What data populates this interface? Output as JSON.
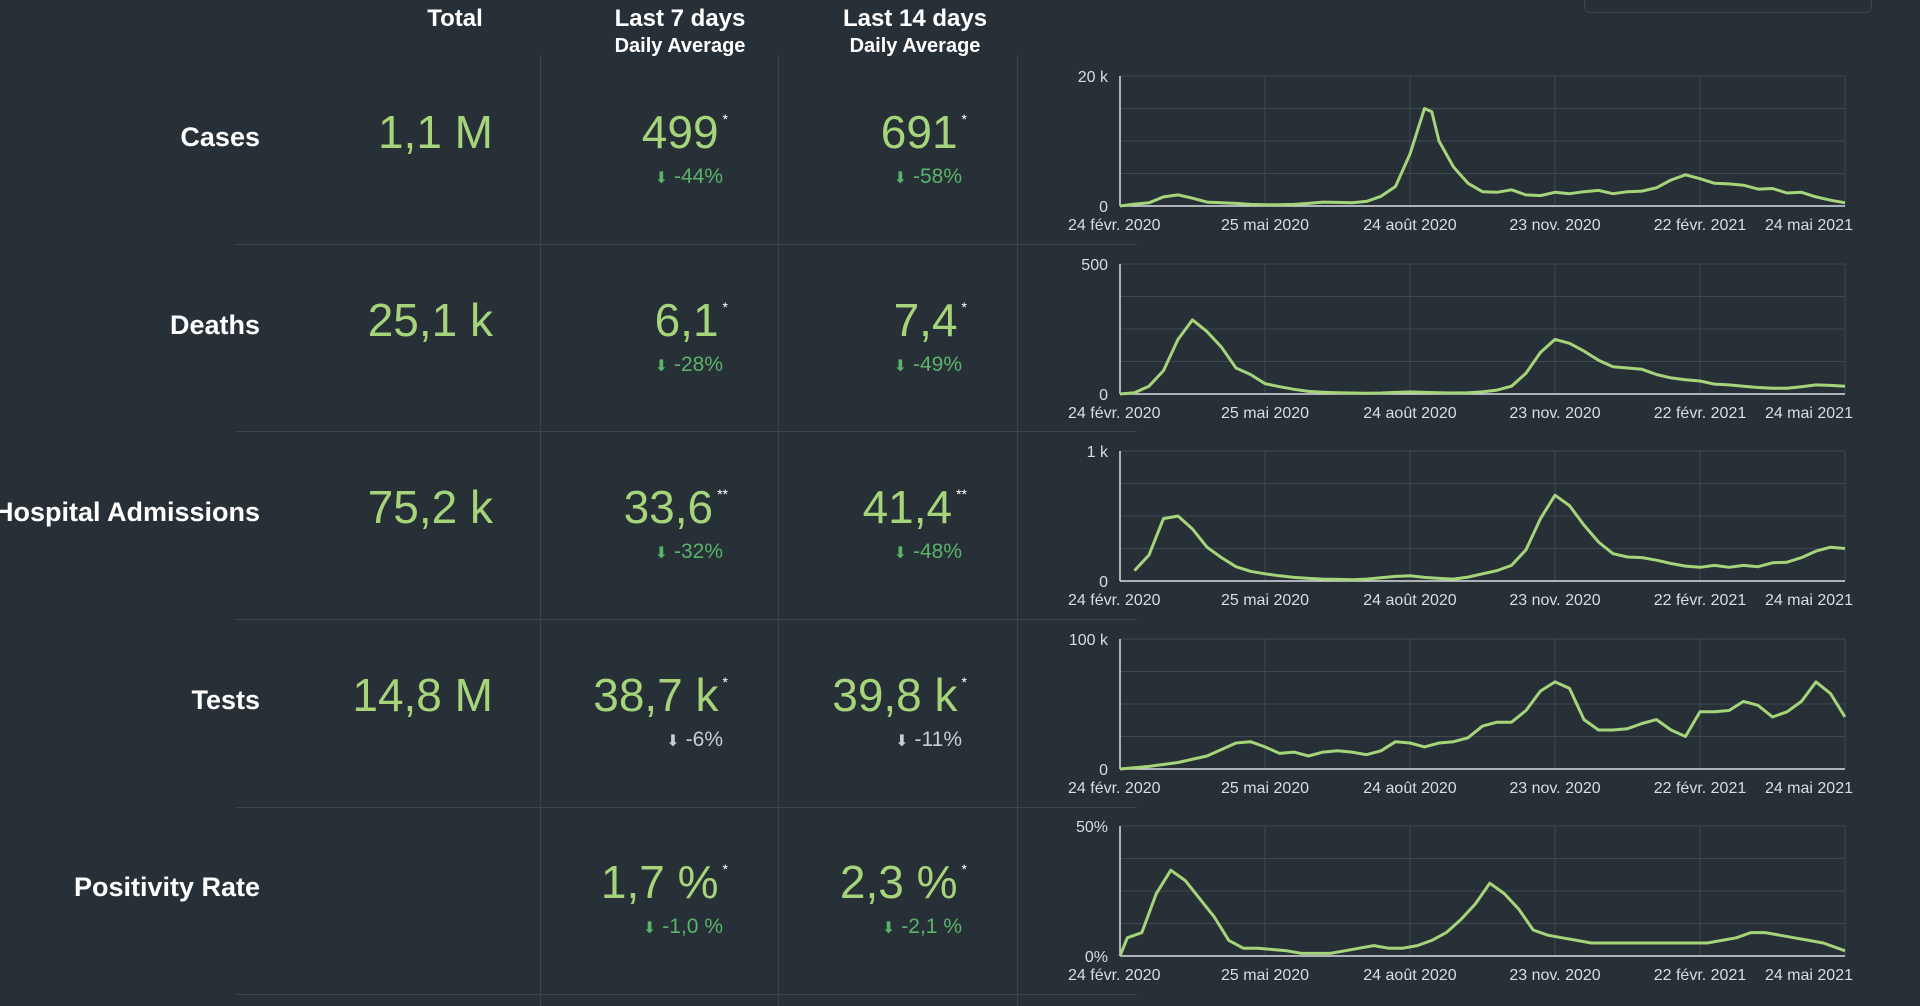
{
  "headers": {
    "total": "Total",
    "last7": "Last 7 days",
    "last7_sub": "Daily Average",
    "last14": "Last 14 days",
    "last14_sub": "Daily Average"
  },
  "colors": {
    "accent": "#a6d47a",
    "down": "#5ab36a",
    "neutral": "#c9ced2",
    "background": "#283037"
  },
  "rows": [
    {
      "label": "Cases",
      "total": "1,1 M",
      "avg7": "499",
      "avg7_mark": "*",
      "chg7": "-44%",
      "chg7_tone": "green",
      "avg14": "691",
      "avg14_mark": "*",
      "chg14": "-58%",
      "chg14_tone": "green"
    },
    {
      "label": "Deaths",
      "total": "25,1 k",
      "avg7": "6,1",
      "avg7_mark": "*",
      "chg7": "-28%",
      "chg7_tone": "green",
      "avg14": "7,4",
      "avg14_mark": "*",
      "chg14": "-49%",
      "chg14_tone": "green"
    },
    {
      "label": "Hospital Admissions",
      "total": "75,2 k",
      "avg7": "33,6",
      "avg7_mark": "**",
      "chg7": "-32%",
      "chg7_tone": "green",
      "avg14": "41,4",
      "avg14_mark": "**",
      "chg14": "-48%",
      "chg14_tone": "green"
    },
    {
      "label": "Tests",
      "total": "14,8 M",
      "avg7": "38,7 k",
      "avg7_mark": "*",
      "chg7": "-6%",
      "chg7_tone": "grey",
      "avg14": "39,8 k",
      "avg14_mark": "*",
      "chg14": "-11%",
      "chg14_tone": "grey"
    },
    {
      "label": "Positivity Rate",
      "total": "",
      "avg7": "1,7 %",
      "avg7_mark": "*",
      "chg7": "-1,0 %",
      "chg7_tone": "green",
      "avg14": "2,3 %",
      "avg14_mark": "*",
      "chg14": "-2,1 %",
      "chg14_tone": "green"
    }
  ],
  "chart_data": [
    {
      "type": "line",
      "metric": "Cases",
      "ylim": [
        0,
        20000
      ],
      "yticks": [
        "0",
        "20 k"
      ],
      "xticks": [
        "24 févr. 2020",
        "25 mai 2020",
        "24 août 2020",
        "23 nov. 2020",
        "22 févr. 2021",
        "24 mai 2021"
      ],
      "grid": true,
      "points": [
        [
          0,
          0
        ],
        [
          2,
          300
        ],
        [
          4,
          500
        ],
        [
          6,
          1400
        ],
        [
          8,
          1700
        ],
        [
          10,
          1200
        ],
        [
          12,
          600
        ],
        [
          14,
          500
        ],
        [
          16,
          400
        ],
        [
          18,
          250
        ],
        [
          20,
          200
        ],
        [
          22,
          200
        ],
        [
          24,
          250
        ],
        [
          26,
          400
        ],
        [
          28,
          600
        ],
        [
          30,
          550
        ],
        [
          32,
          500
        ],
        [
          34,
          700
        ],
        [
          36,
          1500
        ],
        [
          38,
          3000
        ],
        [
          40,
          8000
        ],
        [
          42,
          15000
        ],
        [
          43,
          14500
        ],
        [
          44,
          10000
        ],
        [
          46,
          6000
        ],
        [
          48,
          3500
        ],
        [
          50,
          2200
        ],
        [
          52,
          2100
        ],
        [
          54,
          2500
        ],
        [
          56,
          1700
        ],
        [
          58,
          1600
        ],
        [
          60,
          2100
        ],
        [
          62,
          1900
        ],
        [
          64,
          2200
        ],
        [
          66,
          2400
        ],
        [
          68,
          1900
        ],
        [
          70,
          2200
        ],
        [
          72,
          2300
        ],
        [
          74,
          2800
        ],
        [
          76,
          4000
        ],
        [
          78,
          4800
        ],
        [
          80,
          4200
        ],
        [
          82,
          3500
        ],
        [
          84,
          3400
        ],
        [
          86,
          3200
        ],
        [
          88,
          2600
        ],
        [
          90,
          2700
        ],
        [
          92,
          2000
        ],
        [
          94,
          2100
        ],
        [
          96,
          1400
        ],
        [
          98,
          900
        ],
        [
          100,
          500
        ]
      ]
    },
    {
      "type": "line",
      "metric": "Deaths",
      "ylim": [
        0,
        500
      ],
      "yticks": [
        "0",
        "500"
      ],
      "xticks": [
        "24 févr. 2020",
        "25 mai 2020",
        "24 août 2020",
        "23 nov. 2020",
        "22 févr. 2021",
        "24 mai 2021"
      ],
      "grid": true,
      "points": [
        [
          0,
          0
        ],
        [
          2,
          5
        ],
        [
          4,
          30
        ],
        [
          6,
          90
        ],
        [
          8,
          210
        ],
        [
          10,
          285
        ],
        [
          12,
          240
        ],
        [
          14,
          180
        ],
        [
          16,
          100
        ],
        [
          18,
          75
        ],
        [
          20,
          40
        ],
        [
          22,
          28
        ],
        [
          24,
          18
        ],
        [
          26,
          10
        ],
        [
          28,
          7
        ],
        [
          30,
          5
        ],
        [
          32,
          4
        ],
        [
          34,
          3
        ],
        [
          36,
          4
        ],
        [
          38,
          6
        ],
        [
          40,
          8
        ],
        [
          42,
          6
        ],
        [
          44,
          5
        ],
        [
          46,
          4
        ],
        [
          48,
          5
        ],
        [
          50,
          8
        ],
        [
          52,
          15
        ],
        [
          54,
          30
        ],
        [
          56,
          80
        ],
        [
          58,
          160
        ],
        [
          60,
          210
        ],
        [
          62,
          195
        ],
        [
          64,
          165
        ],
        [
          66,
          130
        ],
        [
          68,
          105
        ],
        [
          70,
          100
        ],
        [
          72,
          95
        ],
        [
          74,
          75
        ],
        [
          76,
          62
        ],
        [
          78,
          55
        ],
        [
          80,
          50
        ],
        [
          82,
          38
        ],
        [
          84,
          35
        ],
        [
          86,
          30
        ],
        [
          88,
          25
        ],
        [
          90,
          22
        ],
        [
          92,
          22
        ],
        [
          94,
          28
        ],
        [
          96,
          35
        ],
        [
          98,
          33
        ],
        [
          100,
          30
        ]
      ]
    },
    {
      "type": "line",
      "metric": "Hospital Admissions",
      "ylim": [
        0,
        1000
      ],
      "yticks": [
        "0",
        "1 k"
      ],
      "xticks": [
        "24 févr. 2020",
        "25 mai 2020",
        "24 août 2020",
        "23 nov. 2020",
        "22 févr. 2021",
        "24 mai 2021"
      ],
      "grid": true,
      "points": [
        [
          2,
          80
        ],
        [
          4,
          200
        ],
        [
          6,
          480
        ],
        [
          8,
          500
        ],
        [
          10,
          400
        ],
        [
          12,
          260
        ],
        [
          14,
          180
        ],
        [
          16,
          110
        ],
        [
          18,
          75
        ],
        [
          20,
          55
        ],
        [
          22,
          40
        ],
        [
          24,
          28
        ],
        [
          26,
          20
        ],
        [
          28,
          15
        ],
        [
          30,
          12
        ],
        [
          32,
          10
        ],
        [
          34,
          15
        ],
        [
          36,
          25
        ],
        [
          38,
          35
        ],
        [
          40,
          40
        ],
        [
          42,
          28
        ],
        [
          44,
          20
        ],
        [
          46,
          15
        ],
        [
          48,
          30
        ],
        [
          50,
          55
        ],
        [
          52,
          80
        ],
        [
          54,
          120
        ],
        [
          56,
          240
        ],
        [
          58,
          480
        ],
        [
          60,
          660
        ],
        [
          62,
          580
        ],
        [
          64,
          430
        ],
        [
          66,
          300
        ],
        [
          68,
          210
        ],
        [
          70,
          185
        ],
        [
          72,
          180
        ],
        [
          74,
          160
        ],
        [
          76,
          135
        ],
        [
          78,
          115
        ],
        [
          80,
          105
        ],
        [
          82,
          120
        ],
        [
          84,
          105
        ],
        [
          86,
          120
        ],
        [
          88,
          110
        ],
        [
          90,
          140
        ],
        [
          92,
          145
        ],
        [
          94,
          180
        ],
        [
          96,
          230
        ],
        [
          98,
          260
        ],
        [
          100,
          250
        ]
      ]
    },
    {
      "type": "line",
      "metric": "Tests",
      "ylim": [
        0,
        100000
      ],
      "yticks": [
        "0",
        "100 k"
      ],
      "xticks": [
        "24 févr. 2020",
        "25 mai 2020",
        "24 août 2020",
        "23 nov. 2020",
        "22 févr. 2021",
        "24 mai 2021"
      ],
      "grid": true,
      "points": [
        [
          0,
          0
        ],
        [
          4,
          2000
        ],
        [
          8,
          5000
        ],
        [
          12,
          10000
        ],
        [
          16,
          20000
        ],
        [
          18,
          21000
        ],
        [
          20,
          17000
        ],
        [
          22,
          12000
        ],
        [
          24,
          13000
        ],
        [
          26,
          10000
        ],
        [
          28,
          13000
        ],
        [
          30,
          14000
        ],
        [
          32,
          13000
        ],
        [
          34,
          11000
        ],
        [
          36,
          14000
        ],
        [
          38,
          21000
        ],
        [
          40,
          20000
        ],
        [
          42,
          17000
        ],
        [
          44,
          20000
        ],
        [
          46,
          21000
        ],
        [
          48,
          24000
        ],
        [
          50,
          33000
        ],
        [
          52,
          36000
        ],
        [
          54,
          36000
        ],
        [
          56,
          45000
        ],
        [
          58,
          60000
        ],
        [
          60,
          67000
        ],
        [
          62,
          62000
        ],
        [
          64,
          38000
        ],
        [
          66,
          30000
        ],
        [
          68,
          30000
        ],
        [
          70,
          31000
        ],
        [
          72,
          35000
        ],
        [
          74,
          38000
        ],
        [
          76,
          30000
        ],
        [
          78,
          25000
        ],
        [
          80,
          44000
        ],
        [
          82,
          44000
        ],
        [
          84,
          45000
        ],
        [
          86,
          52000
        ],
        [
          88,
          49000
        ],
        [
          90,
          40000
        ],
        [
          92,
          44000
        ],
        [
          94,
          52000
        ],
        [
          96,
          67000
        ],
        [
          98,
          58000
        ],
        [
          100,
          40000
        ]
      ]
    },
    {
      "type": "line",
      "metric": "Positivity Rate",
      "ylim": [
        0,
        50
      ],
      "yticks": [
        "0%",
        "50%"
      ],
      "xticks": [
        "24 févr. 2020",
        "25 mai 2020",
        "24 août 2020",
        "23 nov. 2020",
        "22 févr. 2021",
        "24 mai 2021"
      ],
      "grid": true,
      "points": [
        [
          0,
          0
        ],
        [
          1,
          7
        ],
        [
          3,
          9
        ],
        [
          5,
          24
        ],
        [
          7,
          33
        ],
        [
          9,
          29
        ],
        [
          11,
          22
        ],
        [
          13,
          15
        ],
        [
          15,
          6
        ],
        [
          17,
          3
        ],
        [
          19,
          3
        ],
        [
          21,
          2.5
        ],
        [
          23,
          2
        ],
        [
          25,
          1
        ],
        [
          27,
          1
        ],
        [
          29,
          1
        ],
        [
          31,
          2
        ],
        [
          33,
          3
        ],
        [
          35,
          4
        ],
        [
          37,
          3
        ],
        [
          39,
          3
        ],
        [
          41,
          4
        ],
        [
          43,
          6
        ],
        [
          45,
          9
        ],
        [
          47,
          14
        ],
        [
          49,
          20
        ],
        [
          51,
          28
        ],
        [
          53,
          24
        ],
        [
          55,
          18
        ],
        [
          57,
          10
        ],
        [
          59,
          8
        ],
        [
          61,
          7
        ],
        [
          63,
          6
        ],
        [
          65,
          5
        ],
        [
          67,
          5
        ],
        [
          69,
          5
        ],
        [
          71,
          5
        ],
        [
          73,
          5
        ],
        [
          75,
          5
        ],
        [
          77,
          5
        ],
        [
          79,
          5
        ],
        [
          81,
          5
        ],
        [
          83,
          6
        ],
        [
          85,
          7
        ],
        [
          87,
          9
        ],
        [
          89,
          9
        ],
        [
          91,
          8
        ],
        [
          93,
          7
        ],
        [
          95,
          6
        ],
        [
          97,
          5
        ],
        [
          99,
          3
        ],
        [
          100,
          2
        ]
      ]
    }
  ]
}
